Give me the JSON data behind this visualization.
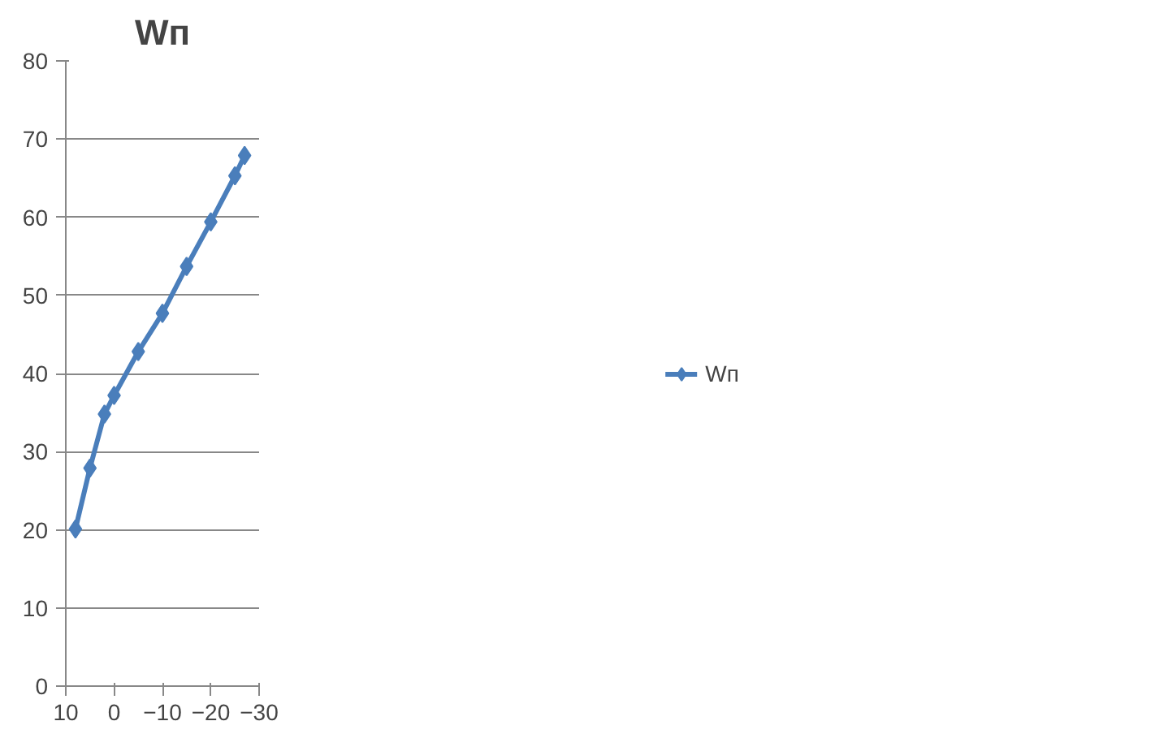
{
  "chart_data": {
    "type": "line",
    "title": "Wп",
    "x": [
      8,
      5,
      2,
      0,
      -5,
      -10,
      -15,
      -20,
      -25,
      -27
    ],
    "series": [
      {
        "name": "Wп",
        "color": "#4a7ebb",
        "values": [
          20.1,
          27.9,
          34.8,
          37.2,
          42.8,
          47.7,
          53.7,
          59.4,
          65.3,
          67.9
        ]
      }
    ],
    "xlim": [
      10,
      -30
    ],
    "xticks": [
      10,
      0,
      -10,
      -20,
      -30
    ],
    "ylim": [
      0,
      80
    ],
    "yticks": [
      0,
      10,
      20,
      30,
      40,
      50,
      60,
      70,
      80
    ],
    "grid": "y",
    "legend": "right",
    "marker": "diamond",
    "line_style": "solid"
  }
}
